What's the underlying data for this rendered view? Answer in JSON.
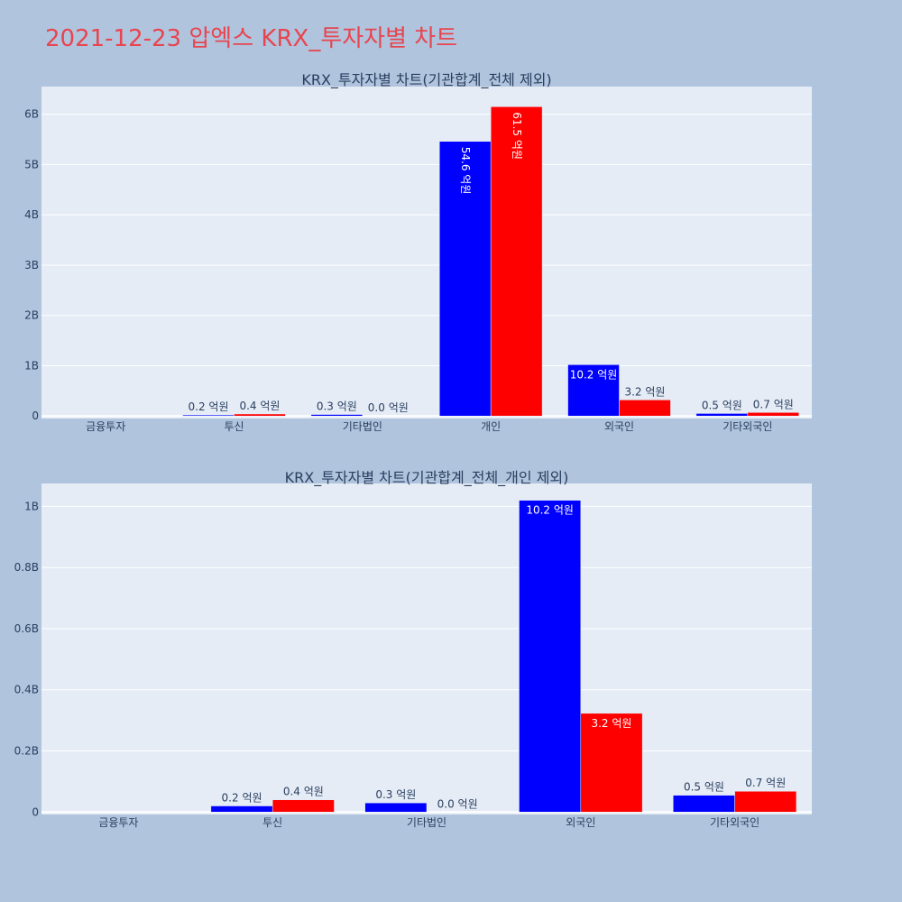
{
  "page_title": "2021-12-23 압엑스 KRX_투자자별 차트",
  "colors": {
    "buy": "#0000ff",
    "sell": "#ff0000",
    "plot_bg": "#e5ecf6",
    "page_bg": "#b0c4de",
    "title": "#e8454f"
  },
  "chart_data": [
    {
      "type": "bar",
      "title": "KRX_투자자별 차트(기관합계_전체 제외)",
      "categories": [
        "금융투자",
        "투신",
        "기타법인",
        "개인",
        "외국인",
        "기타외국인"
      ],
      "series": [
        {
          "values": [
            0,
            0.02,
            0.03,
            5.46,
            1.02,
            0.05
          ],
          "labels": [
            "",
            "0.2 억원",
            "0.3 억원",
            "54.6 억원",
            "10.2 억원",
            "0.5 억원"
          ]
        },
        {
          "values": [
            0,
            0.04,
            0.0,
            6.15,
            0.32,
            0.07
          ],
          "labels": [
            "",
            "0.4 억원",
            "0.0 억원",
            "61.5 억원",
            "3.2 억원",
            "0.7 억원"
          ]
        }
      ],
      "yticks": [
        0,
        1,
        2,
        3,
        4,
        5,
        6
      ],
      "ytick_labels": [
        "0",
        "1B",
        "2B",
        "3B",
        "4B",
        "5B",
        "6B"
      ],
      "ylim": [
        -0.05,
        6.55
      ],
      "xlabel": "",
      "ylabel": "",
      "grid": true
    },
    {
      "type": "bar",
      "title": "KRX_투자자별 차트(기관합계_전체_개인 제외)",
      "categories": [
        "금융투자",
        "투신",
        "기타법인",
        "외국인",
        "기타외국인"
      ],
      "series": [
        {
          "values": [
            0,
            0.02,
            0.03,
            1.02,
            0.055
          ],
          "labels": [
            "",
            "0.2 억원",
            "0.3 억원",
            "10.2 억원",
            "0.5 억원"
          ]
        },
        {
          "values": [
            0,
            0.04,
            0.0,
            0.323,
            0.068
          ],
          "labels": [
            "",
            "0.4 억원",
            "0.0 억원",
            "3.2 억원",
            "0.7 억원"
          ]
        }
      ],
      "yticks": [
        0,
        0.2,
        0.4,
        0.6,
        0.8,
        1.0
      ],
      "ytick_labels": [
        "0",
        "0.2B",
        "0.4B",
        "0.6B",
        "0.8B",
        "1B"
      ],
      "ylim": [
        -0.008,
        1.075
      ],
      "xlabel": "",
      "ylabel": "",
      "grid": true
    }
  ]
}
